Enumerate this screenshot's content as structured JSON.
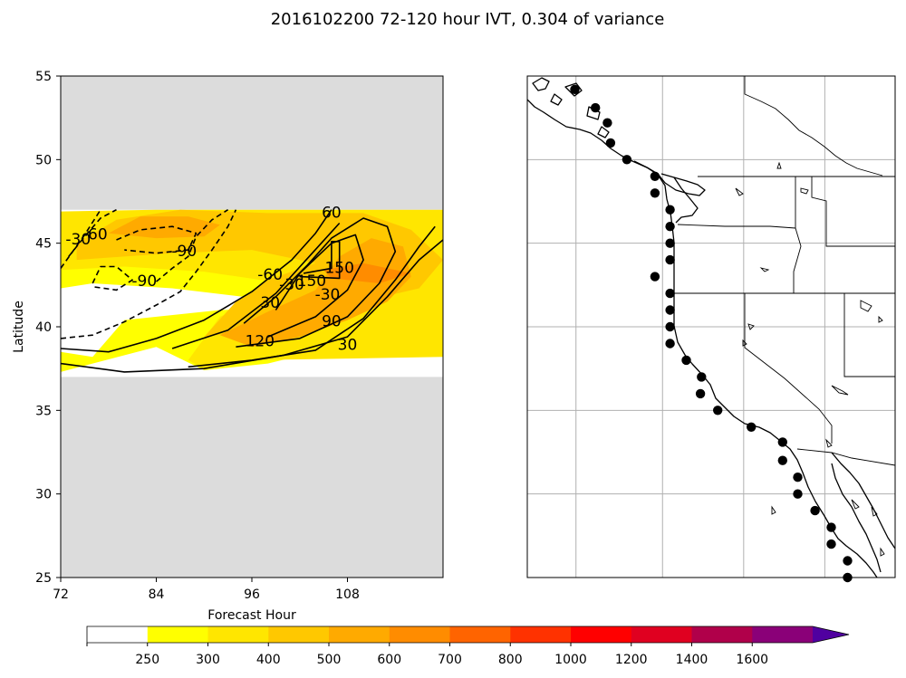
{
  "figure_title": "2016102200 72-120 hour IVT, 0.304 of variance",
  "chart_data": [
    {
      "type": "heatmap",
      "title": "",
      "xlabel": "Forecast Hour",
      "ylabel": "Latitude",
      "xlim": [
        72,
        120
      ],
      "ylim": [
        25,
        55
      ],
      "x_ticks": [
        "72",
        "84",
        "96",
        "108"
      ],
      "y_ticks": [
        "25",
        "30",
        "35",
        "40",
        "45",
        "50",
        "55"
      ],
      "data_lat_range": [
        37,
        47
      ],
      "missing_color": "#dcdcdc",
      "fill_levels": [
        {
          "level": 0,
          "color": "#ffffff"
        },
        {
          "level": 250,
          "color": "#ffff00"
        },
        {
          "level": 300,
          "color": "#ffe600"
        },
        {
          "level": 400,
          "color": "#ffc800"
        },
        {
          "level": 500,
          "color": "#ffaa00"
        },
        {
          "level": 600,
          "color": "#ff8c00"
        }
      ],
      "regions": [
        {
          "level": 250,
          "points": [
            [
              72,
              38.5
            ],
            [
              76,
              38.2
            ],
            [
              80,
              40.4
            ],
            [
              92,
              41
            ],
            [
              108,
              41.2
            ],
            [
              120,
              41.5
            ],
            [
              120,
              38.5
            ],
            [
              104,
              38.5
            ],
            [
              98,
              37.8
            ],
            [
              90,
              37.4
            ],
            [
              84,
              38.8
            ],
            [
              76,
              37.8
            ],
            [
              72,
              37.3
            ]
          ]
        },
        {
          "level": 250,
          "points": [
            [
              72,
              46.2
            ],
            [
              80,
              46.6
            ],
            [
              96,
              46.8
            ],
            [
              116,
              46.8
            ],
            [
              120,
              46.6
            ],
            [
              120,
              42
            ],
            [
              112,
              41.3
            ],
            [
              100,
              41.5
            ],
            [
              86,
              42.3
            ],
            [
              76,
              42.6
            ],
            [
              72,
              42.3
            ]
          ]
        },
        {
          "level": 300,
          "points": [
            [
              72,
              46.9
            ],
            [
              84,
              47
            ],
            [
              96,
              47
            ],
            [
              110,
              47
            ],
            [
              120,
              47
            ],
            [
              120,
              43
            ],
            [
              110,
              42.4
            ],
            [
              100,
              42.6
            ],
            [
              90,
              43.3
            ],
            [
              80,
              43.6
            ],
            [
              72,
              43.4
            ]
          ]
        },
        {
          "level": 300,
          "points": [
            [
              88,
              38
            ],
            [
              92,
              40.6
            ],
            [
              98,
              41.8
            ],
            [
              106,
              42.6
            ],
            [
              112,
              43
            ],
            [
              120,
              43
            ],
            [
              120,
              38.2
            ],
            [
              108,
              38.1
            ],
            [
              96,
              38
            ],
            [
              90,
              37.5
            ]
          ]
        },
        {
          "level": 400,
          "points": [
            [
              74,
              45
            ],
            [
              79,
              46.4
            ],
            [
              87,
              47
            ],
            [
              98,
              46.8
            ],
            [
              110,
              46.8
            ],
            [
              116,
              45.8
            ],
            [
              120,
              44
            ],
            [
              117,
              42.3
            ],
            [
              108,
              41.3
            ],
            [
              100,
              40.4
            ],
            [
              96,
              39.8
            ],
            [
              90,
              39.4
            ],
            [
              94,
              41.5
            ],
            [
              98,
              42.8
            ],
            [
              104,
              43.8
            ],
            [
              96,
              44.6
            ],
            [
              86,
              44.4
            ],
            [
              80,
              44.2
            ],
            [
              74,
              44
            ]
          ]
        },
        {
          "level": 500,
          "points": [
            [
              78,
              45.6
            ],
            [
              82,
              46.6
            ],
            [
              88,
              46.6
            ],
            [
              92,
              46.1
            ],
            [
              90,
              45.4
            ],
            [
              84,
              45.3
            ]
          ]
        },
        {
          "level": 500,
          "points": [
            [
              92,
              39.5
            ],
            [
              98,
              40.9
            ],
            [
              104,
              42.2
            ],
            [
              107,
              44.2
            ],
            [
              111,
              45.3
            ],
            [
              115,
              44.8
            ],
            [
              116,
              43
            ],
            [
              113,
              41.5
            ],
            [
              108,
              40.4
            ],
            [
              102,
              39.4
            ],
            [
              96,
              38.8
            ]
          ]
        },
        {
          "level": 600,
          "points": [
            [
              105,
              43.4
            ],
            [
              110,
              43.8
            ],
            [
              116,
              43.2
            ],
            [
              112,
              42.6
            ],
            [
              106,
              42.9
            ]
          ]
        }
      ],
      "contours": [
        {
          "level": -30,
          "points": [
            [
              72,
              43.5
            ],
            [
              75,
              45.5
            ],
            [
              77,
              47
            ]
          ]
        },
        {
          "level": -30,
          "points": [
            [
              72,
              39.3
            ],
            [
              76,
              39.5
            ],
            [
              80,
              40.3
            ],
            [
              84,
              41.3
            ],
            [
              87,
              42.1
            ],
            [
              89,
              43.3
            ],
            [
              91,
              44.6
            ],
            [
              93,
              46
            ],
            [
              94,
              47
            ]
          ]
        },
        {
          "level": -60,
          "points": [
            [
              73,
              44.2
            ],
            [
              75,
              45.4
            ],
            [
              77,
              46.5
            ],
            [
              79,
              47
            ]
          ]
        },
        {
          "level": -60,
          "points": [
            [
              84,
              42.7
            ],
            [
              86,
              43.5
            ],
            [
              88,
              44.2
            ],
            [
              89,
              45.4
            ],
            [
              91,
              46.4
            ],
            [
              93,
              47
            ]
          ]
        },
        {
          "level": -90,
          "points": [
            [
              76,
              42.6
            ],
            [
              77,
              43.6
            ],
            [
              79,
              43.6
            ],
            [
              81,
              42.8
            ],
            [
              79,
              42.2
            ],
            [
              76,
              42.4
            ]
          ]
        },
        {
          "level": -90,
          "points": [
            [
              79,
              45.2
            ],
            [
              82,
              45.8
            ],
            [
              86,
              46
            ],
            [
              89,
              45.6
            ],
            [
              88,
              44.6
            ],
            [
              84,
              44.4
            ],
            [
              80,
              44.6
            ]
          ]
        },
        {
          "level": 30,
          "points": [
            [
              72,
              37.8
            ],
            [
              80,
              37.3
            ],
            [
              90,
              37.5
            ],
            [
              100,
              38.3
            ],
            [
              108,
              39.4
            ],
            [
              113,
              41.8
            ],
            [
              117,
              44
            ],
            [
              120,
              45.2
            ]
          ]
        },
        {
          "level": 30,
          "points": [
            [
              72,
              38.7
            ],
            [
              78,
              38.5
            ],
            [
              84,
              39.3
            ],
            [
              90,
              40.4
            ],
            [
              96,
              42.1
            ],
            [
              101,
              44
            ],
            [
              104,
              45.6
            ],
            [
              106,
              47
            ]
          ]
        },
        {
          "level": 60,
          "points": [
            [
              88,
              37.6
            ],
            [
              96,
              38
            ],
            [
              104,
              38.6
            ],
            [
              110,
              40.5
            ],
            [
              114,
              42.8
            ],
            [
              117,
              44.8
            ],
            [
              119,
              46
            ]
          ]
        },
        {
          "level": 60,
          "points": [
            [
              86,
              38.7
            ],
            [
              93,
              39.8
            ],
            [
              99,
              42
            ],
            [
              103,
              44.1
            ],
            [
              107,
              46.2
            ]
          ]
        },
        {
          "level": 90,
          "points": [
            [
              94,
              38.8
            ],
            [
              102,
              39.3
            ],
            [
              108,
              40.6
            ],
            [
              112,
              42.6
            ],
            [
              114,
              44.5
            ],
            [
              113,
              46
            ],
            [
              110,
              46.5
            ],
            [
              106,
              45.3
            ],
            [
              103,
              43.7
            ],
            [
              99,
              41.8
            ],
            [
              95,
              40.2
            ]
          ]
        },
        {
          "level": 120,
          "points": [
            [
              98,
              39.4
            ],
            [
              104,
              40.6
            ],
            [
              108,
              42.2
            ],
            [
              110,
              44
            ],
            [
              109,
              45.5
            ],
            [
              106,
              45
            ],
            [
              102,
              43.2
            ],
            [
              99,
              41
            ]
          ]
        },
        {
          "level": 150,
          "points": [
            [
              102,
              43
            ],
            [
              107,
              42.9
            ],
            [
              107,
              45.1
            ],
            [
              106,
              45.1
            ],
            [
              106,
              43.5
            ],
            [
              102.5,
              43.2
            ]
          ]
        }
      ],
      "contour_labels": [
        {
          "text": "-30",
          "x": 74.2,
          "y": 45.2
        },
        {
          "text": "-60",
          "x": 76.3,
          "y": 45.5
        },
        {
          "text": "-90",
          "x": 87.5,
          "y": 44.5
        },
        {
          "text": "-90",
          "x": 82.5,
          "y": 42.7
        },
        {
          "text": "-60",
          "x": 98.3,
          "y": 43.1
        },
        {
          "text": "-30",
          "x": 101,
          "y": 42.5
        },
        {
          "text": "-30",
          "x": 105.5,
          "y": 41.9
        },
        {
          "text": "30",
          "x": 98.3,
          "y": 41.4
        },
        {
          "text": "60",
          "x": 106,
          "y": 46.8
        },
        {
          "text": "150",
          "x": 107,
          "y": 43.5
        },
        {
          "text": "150",
          "x": 103.5,
          "y": 42.7
        },
        {
          "text": "120",
          "x": 97,
          "y": 39.1
        },
        {
          "text": "90",
          "x": 106,
          "y": 40.3
        },
        {
          "text": "30",
          "x": 108,
          "y": 38.9
        }
      ]
    },
    {
      "type": "scatter",
      "title": "",
      "xlim": [
        -140,
        -106
      ],
      "ylim": [
        25,
        55
      ],
      "gridlines_lon": [
        -135.5,
        -127.5,
        -120,
        -112.5
      ],
      "gridlines_lat": [
        25,
        30,
        35,
        40,
        45,
        50,
        55
      ],
      "points": [
        {
          "lon": -135.6,
          "lat": 54.2
        },
        {
          "lon": -133.7,
          "lat": 53.1
        },
        {
          "lon": -132.6,
          "lat": 52.2
        },
        {
          "lon": -132.3,
          "lat": 51.0
        },
        {
          "lon": -130.8,
          "lat": 50.0
        },
        {
          "lon": -128.2,
          "lat": 49.0
        },
        {
          "lon": -128.2,
          "lat": 48.0
        },
        {
          "lon": -126.8,
          "lat": 47.0
        },
        {
          "lon": -126.8,
          "lat": 46.0
        },
        {
          "lon": -126.8,
          "lat": 45.0
        },
        {
          "lon": -126.8,
          "lat": 44.0
        },
        {
          "lon": -128.2,
          "lat": 43.0
        },
        {
          "lon": -126.8,
          "lat": 42.0
        },
        {
          "lon": -126.8,
          "lat": 41.0
        },
        {
          "lon": -126.8,
          "lat": 40.0
        },
        {
          "lon": -126.8,
          "lat": 39.0
        },
        {
          "lon": -125.3,
          "lat": 38.0
        },
        {
          "lon": -123.9,
          "lat": 37.0
        },
        {
          "lon": -124.0,
          "lat": 36.0
        },
        {
          "lon": -122.4,
          "lat": 35.0
        },
        {
          "lon": -119.3,
          "lat": 34.0
        },
        {
          "lon": -116.4,
          "lat": 33.1
        },
        {
          "lon": -116.4,
          "lat": 32.0
        },
        {
          "lon": -115.0,
          "lat": 31.0
        },
        {
          "lon": -115.0,
          "lat": 30.0
        },
        {
          "lon": -113.4,
          "lat": 29.0
        },
        {
          "lon": -111.9,
          "lat": 28.0
        },
        {
          "lon": -111.9,
          "lat": 27.0
        },
        {
          "lon": -110.4,
          "lat": 26.0
        },
        {
          "lon": -110.4,
          "lat": 25.0
        }
      ]
    }
  ],
  "colorbar": {
    "levels": [
      "250",
      "300",
      "400",
      "500",
      "600",
      "700",
      "800",
      "1000",
      "1200",
      "1400",
      "1600"
    ],
    "colors": [
      "#ffffff",
      "#ffff00",
      "#ffe600",
      "#ffc800",
      "#ffaa00",
      "#ff8c00",
      "#ff6400",
      "#ff3200",
      "#ff0000",
      "#e00020",
      "#b0004a",
      "#8a0078",
      "#6a0090",
      "#5000a0"
    ],
    "extend": "max"
  },
  "map": {
    "coastline_color": "#000000",
    "marker_color": "#000000"
  }
}
